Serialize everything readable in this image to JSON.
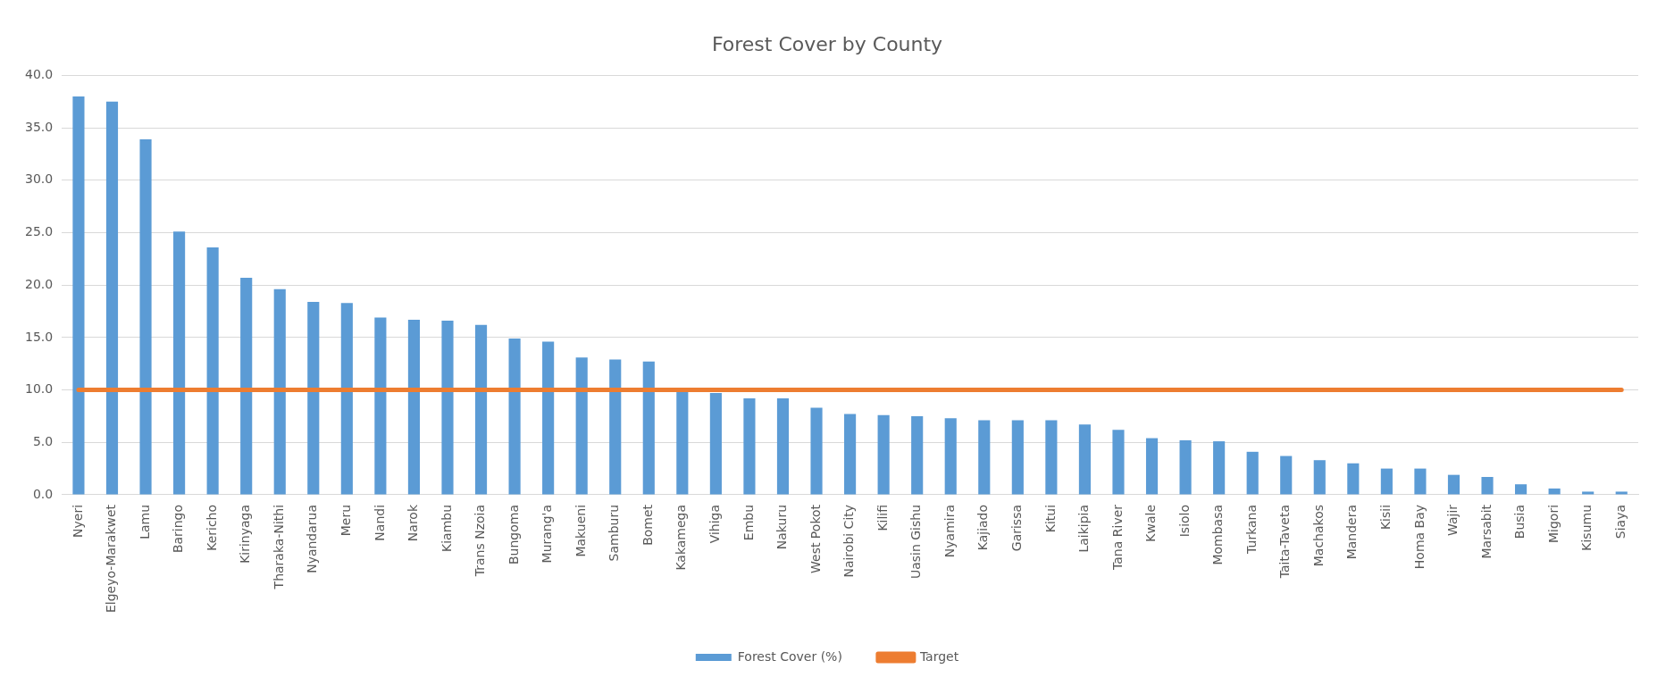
{
  "chart_data": {
    "type": "bar",
    "title": "Forest Cover by County",
    "categories": [
      "Nyeri",
      "Elgeyo-Marakwet",
      "Lamu",
      "Baringo",
      "Kericho",
      "Kirinyaga",
      "Tharaka-Nithi",
      "Nyandarua",
      "Meru",
      "Nandi",
      "Narok",
      "Kiambu",
      "Trans Nzoia",
      "Bungoma",
      "Murang'a",
      "Makueni",
      "Samburu",
      "Bomet",
      "Kakamega",
      "Vihiga",
      "Embu",
      "Nakuru",
      "West Pokot",
      "Nairobi City",
      "Kilifi",
      "Uasin Gishu",
      "Nyamira",
      "Kajiado",
      "Garissa",
      "Kitui",
      "Laikipia",
      "Tana River",
      "Kwale",
      "Isiolo",
      "Mombasa",
      "Turkana",
      "Taita-Taveta",
      "Machakos",
      "Mandera",
      "Kisii",
      "Homa Bay",
      "Wajir",
      "Marsabit",
      "Busia",
      "Migori",
      "Kisumu",
      "Siaya"
    ],
    "series": [
      {
        "name": "Forest Cover (%)",
        "color": "#5b9bd5",
        "values": [
          38.0,
          37.5,
          33.9,
          25.1,
          23.6,
          20.7,
          19.6,
          18.4,
          18.3,
          16.9,
          16.7,
          16.6,
          16.2,
          14.9,
          14.6,
          13.1,
          12.9,
          12.7,
          9.8,
          9.7,
          9.2,
          9.2,
          8.3,
          7.7,
          7.6,
          7.5,
          7.3,
          7.1,
          7.1,
          7.1,
          6.7,
          6.2,
          5.4,
          5.2,
          5.1,
          4.1,
          3.7,
          3.3,
          3.0,
          2.5,
          2.5,
          1.9,
          1.7,
          1.0,
          0.6,
          0.3,
          0.3
        ]
      },
      {
        "name": "Target",
        "type": "line",
        "color": "#ed7d31",
        "values": [
          10,
          10,
          10,
          10,
          10,
          10,
          10,
          10,
          10,
          10,
          10,
          10,
          10,
          10,
          10,
          10,
          10,
          10,
          10,
          10,
          10,
          10,
          10,
          10,
          10,
          10,
          10,
          10,
          10,
          10,
          10,
          10,
          10,
          10,
          10,
          10,
          10,
          10,
          10,
          10,
          10,
          10,
          10,
          10,
          10,
          10,
          10
        ]
      }
    ],
    "ylim": [
      0,
      40
    ],
    "yticks": [
      {
        "value": 0,
        "label": "0.0"
      },
      {
        "value": 5,
        "label": "5.0"
      },
      {
        "value": 10,
        "label": "10.0"
      },
      {
        "value": 15,
        "label": "15.0"
      },
      {
        "value": 20,
        "label": "20.0"
      },
      {
        "value": 25,
        "label": "25.0"
      },
      {
        "value": 30,
        "label": "30.0"
      },
      {
        "value": 35,
        "label": "35.0"
      },
      {
        "value": 40,
        "label": "40.0"
      }
    ],
    "grid": "y",
    "legend": "bottom",
    "marker": "none"
  }
}
